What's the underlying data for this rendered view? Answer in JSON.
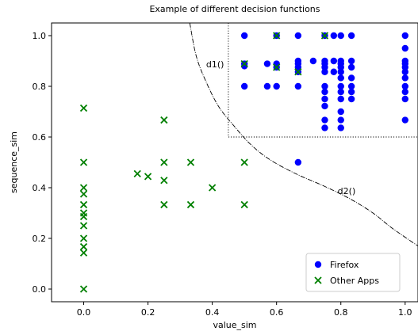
{
  "chart_data": {
    "type": "scatter",
    "title": "Example of different decision functions",
    "xlabel": "value_sim",
    "ylabel": "sequence_sim",
    "xlim": [
      -0.1,
      1.04
    ],
    "ylim": [
      -0.05,
      1.05
    ],
    "xticks": [
      0.0,
      0.2,
      0.4,
      0.6,
      0.8,
      1.0
    ],
    "yticks": [
      0.0,
      0.2,
      0.4,
      0.6,
      0.8,
      1.0
    ],
    "xtick_labels": [
      "0.0",
      "0.2",
      "0.4",
      "0.6",
      "0.8",
      "1.0"
    ],
    "ytick_labels": [
      "0.0",
      "0.2",
      "0.4",
      "0.6",
      "0.8",
      "1.0"
    ],
    "grid": false,
    "legend_position": "bottom-right",
    "series": [
      {
        "name": "Firefox",
        "marker": "circle",
        "color": "#0000ff",
        "points": [
          [
            0.5,
            1.0
          ],
          [
            0.5,
            0.889
          ],
          [
            0.5,
            0.8
          ],
          [
            0.5,
            0.88
          ],
          [
            0.571,
            0.889
          ],
          [
            0.571,
            0.8
          ],
          [
            0.6,
            1.0
          ],
          [
            0.6,
            0.889
          ],
          [
            0.6,
            0.875
          ],
          [
            0.6,
            0.8
          ],
          [
            0.667,
            1.0
          ],
          [
            0.667,
            0.9
          ],
          [
            0.667,
            0.889
          ],
          [
            0.667,
            0.875
          ],
          [
            0.667,
            0.857
          ],
          [
            0.667,
            0.8
          ],
          [
            0.667,
            0.5
          ],
          [
            0.714,
            0.9
          ],
          [
            0.75,
            1.0
          ],
          [
            0.75,
            0.9
          ],
          [
            0.75,
            0.889
          ],
          [
            0.75,
            0.875
          ],
          [
            0.75,
            0.857
          ],
          [
            0.75,
            0.8
          ],
          [
            0.75,
            0.778
          ],
          [
            0.75,
            0.75
          ],
          [
            0.75,
            0.722
          ],
          [
            0.75,
            0.667
          ],
          [
            0.75,
            0.636
          ],
          [
            0.778,
            1.0
          ],
          [
            0.778,
            0.9
          ],
          [
            0.778,
            0.857
          ],
          [
            0.8,
            1.0
          ],
          [
            0.8,
            0.9
          ],
          [
            0.8,
            0.889
          ],
          [
            0.8,
            0.875
          ],
          [
            0.8,
            0.857
          ],
          [
            0.8,
            0.833
          ],
          [
            0.8,
            0.8
          ],
          [
            0.8,
            0.778
          ],
          [
            0.8,
            0.75
          ],
          [
            0.8,
            0.7
          ],
          [
            0.8,
            0.667
          ],
          [
            0.8,
            0.636
          ],
          [
            0.833,
            1.0
          ],
          [
            0.833,
            0.9
          ],
          [
            0.833,
            0.875
          ],
          [
            0.833,
            0.833
          ],
          [
            0.833,
            0.8
          ],
          [
            0.833,
            0.778
          ],
          [
            0.833,
            0.75
          ],
          [
            1.0,
            1.0
          ],
          [
            1.0,
            0.95
          ],
          [
            1.0,
            0.9
          ],
          [
            1.0,
            0.889
          ],
          [
            1.0,
            0.875
          ],
          [
            1.0,
            0.857
          ],
          [
            1.0,
            0.833
          ],
          [
            1.0,
            0.8
          ],
          [
            1.0,
            0.778
          ],
          [
            1.0,
            0.75
          ],
          [
            1.0,
            0.667
          ]
        ]
      },
      {
        "name": "Other Apps",
        "marker": "x",
        "color": "#008000",
        "points": [
          [
            0.0,
            0.714
          ],
          [
            0.0,
            0.5
          ],
          [
            0.0,
            0.4
          ],
          [
            0.0,
            0.375
          ],
          [
            0.0,
            0.333
          ],
          [
            0.0,
            0.3
          ],
          [
            0.0,
            0.286
          ],
          [
            0.0,
            0.25
          ],
          [
            0.0,
            0.2
          ],
          [
            0.0,
            0.167
          ],
          [
            0.0,
            0.143
          ],
          [
            0.0,
            0.0
          ],
          [
            0.167,
            0.455
          ],
          [
            0.2,
            0.444
          ],
          [
            0.25,
            0.667
          ],
          [
            0.25,
            0.5
          ],
          [
            0.25,
            0.429
          ],
          [
            0.25,
            0.333
          ],
          [
            0.333,
            0.5
          ],
          [
            0.333,
            0.333
          ],
          [
            0.4,
            0.4
          ],
          [
            0.5,
            0.5
          ],
          [
            0.5,
            0.333
          ],
          [
            0.5,
            0.889
          ],
          [
            0.6,
            1.0
          ],
          [
            0.6,
            0.875
          ],
          [
            0.667,
            0.857
          ],
          [
            0.75,
            1.0
          ]
        ]
      }
    ],
    "decision_functions": [
      {
        "label": "d1()",
        "type": "rectangle",
        "x_min": 0.45,
        "y_min": 0.6
      },
      {
        "label": "d2()",
        "type": "curve",
        "points": [
          [
            0.33,
            1.05
          ],
          [
            0.35,
            0.92
          ],
          [
            0.38,
            0.82
          ],
          [
            0.42,
            0.72
          ],
          [
            0.47,
            0.64
          ],
          [
            0.52,
            0.57
          ],
          [
            0.58,
            0.51
          ],
          [
            0.66,
            0.455
          ],
          [
            0.75,
            0.405
          ],
          [
            0.83,
            0.355
          ],
          [
            0.9,
            0.3
          ],
          [
            0.96,
            0.24
          ],
          [
            1.04,
            0.17
          ]
        ]
      }
    ]
  }
}
